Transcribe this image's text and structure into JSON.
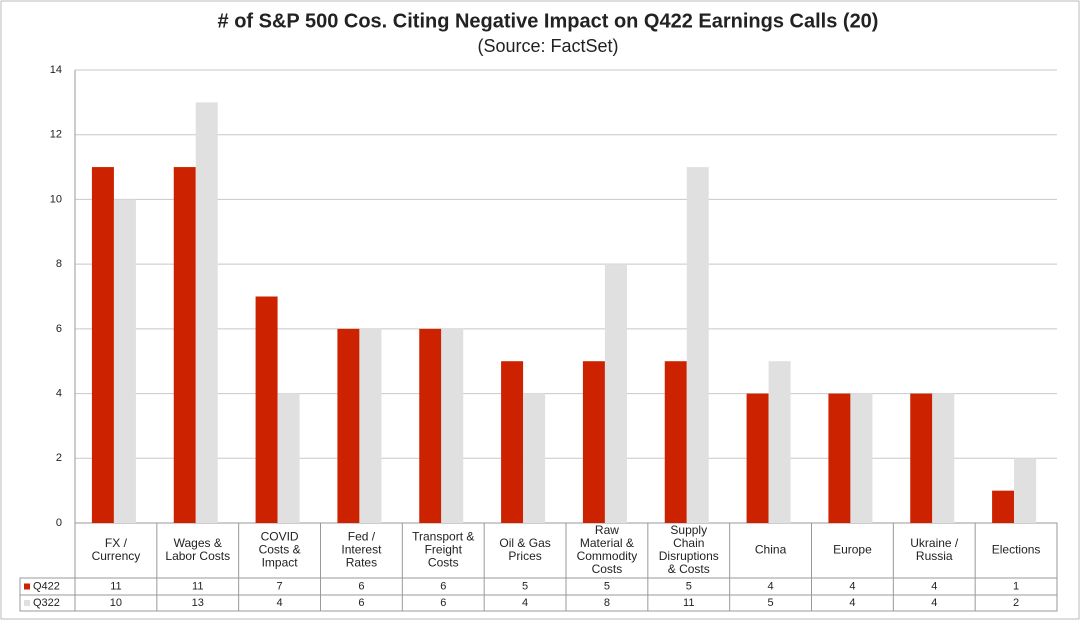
{
  "chart_data": {
    "type": "bar",
    "title": "# of S&P 500 Cos. Citing Negative Impact on Q422 Earnings Calls (20)",
    "subtitle": "(Source: FactSet)",
    "categories": [
      "FX /\nCurrency",
      "Wages &\nLabor Costs",
      "COVID\nCosts &\nImpact",
      "Fed /\nInterest\nRates",
      "Transport &\nFreight\nCosts",
      "Oil & Gas\nPrices",
      "Raw\nMaterial &\nCommodity\nCosts",
      "Supply\nChain\nDisruptions\n& Costs",
      "China",
      "Europe",
      "Ukraine /\nRussia",
      "Elections"
    ],
    "series": [
      {
        "name": "Q422",
        "color": "#cc2200",
        "values": [
          11,
          11,
          7,
          6,
          6,
          5,
          5,
          5,
          4,
          4,
          4,
          1
        ]
      },
      {
        "name": "Q322",
        "color": "#e0e0e0",
        "values": [
          10,
          13,
          4,
          6,
          6,
          4,
          8,
          11,
          5,
          4,
          4,
          2
        ]
      }
    ],
    "ylim": [
      0,
      14
    ],
    "yticks": [
      0,
      2,
      4,
      6,
      8,
      10,
      12,
      14
    ],
    "grid": true
  }
}
